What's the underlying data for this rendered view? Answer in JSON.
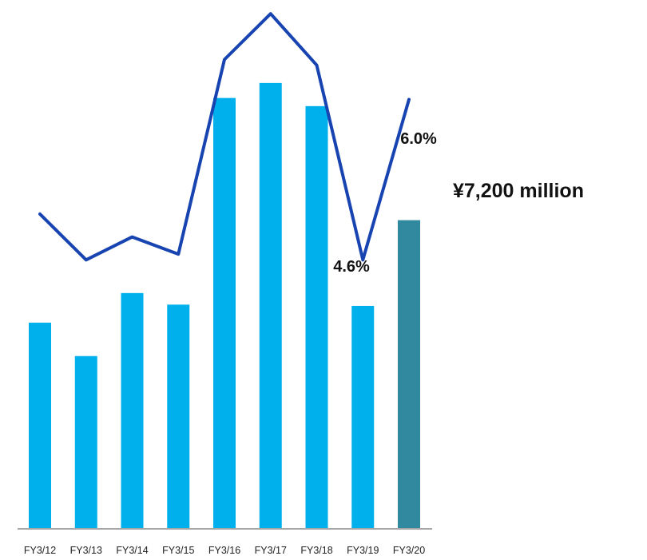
{
  "chart_data": {
    "type": "bar",
    "categories": [
      "FY3/12",
      "FY3/13",
      "FY3/14",
      "FY3/15",
      "FY3/16",
      "FY3/17",
      "FY3/18",
      "FY3/19",
      "FY3/20"
    ],
    "series": [
      {
        "type": "bar",
        "values": [
          4810,
          4030,
          5500,
          5230,
          10050,
          10400,
          9860,
          5200,
          7200
        ]
      },
      {
        "type": "line",
        "values": [
          5.0,
          4.6,
          4.8,
          4.65,
          6.35,
          6.75,
          6.3,
          4.6,
          6.0
        ]
      }
    ],
    "bar_ylim": [
      0,
      12000
    ],
    "line_ylim": [
      2.25,
      6.8
    ],
    "annotations": {
      "last_bar_value": "¥7,200  million",
      "last_line_value": "6.0%",
      "fy19_line_value": "4.6%"
    },
    "grid": false,
    "legend": "none",
    "colors": {
      "bar": "#00b0ec",
      "bar_forecast": "#31899f",
      "line": "#1744b0",
      "axis": "#a6a6a6"
    }
  }
}
